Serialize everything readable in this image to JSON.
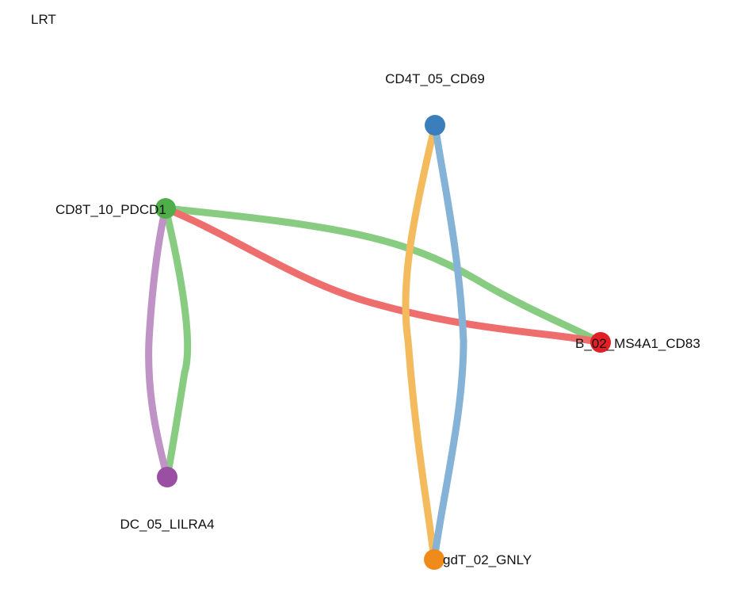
{
  "title": "LRT",
  "nodes": [
    {
      "id": "CD4T_05_CD69",
      "label": "CD4T_05_CD69",
      "color": "#3a7fbb"
    },
    {
      "id": "CD8T_10_PDCD1",
      "label": "CD8T_10_PDCD1",
      "color": "#4fad4a"
    },
    {
      "id": "B_02_MS4A1_CD83",
      "label": "B_02_MS4A1_CD83",
      "color": "#e31f26"
    },
    {
      "id": "DC_05_LILRA4",
      "label": "DC_05_LILRA4",
      "color": "#9a4fa3"
    },
    {
      "id": "gdT_02_GNLY",
      "label": "gdT_02_GNLY",
      "color": "#f08a1a"
    }
  ],
  "edges": [
    {
      "source": "CD8T_10_PDCD1",
      "target": "B_02_MS4A1_CD83",
      "color": "#88cc82"
    },
    {
      "source": "CD8T_10_PDCD1",
      "target": "B_02_MS4A1_CD83",
      "color": "#ee6e6e"
    },
    {
      "source": "CD8T_10_PDCD1",
      "target": "DC_05_LILRA4",
      "color": "#88cc82"
    },
    {
      "source": "DC_05_LILRA4",
      "target": "CD8T_10_PDCD1",
      "color": "#c093c6"
    },
    {
      "source": "CD4T_05_CD69",
      "target": "gdT_02_GNLY",
      "color": "#f4bb5e"
    },
    {
      "source": "gdT_02_GNLY",
      "target": "CD4T_05_CD69",
      "color": "#85b3d7"
    }
  ]
}
